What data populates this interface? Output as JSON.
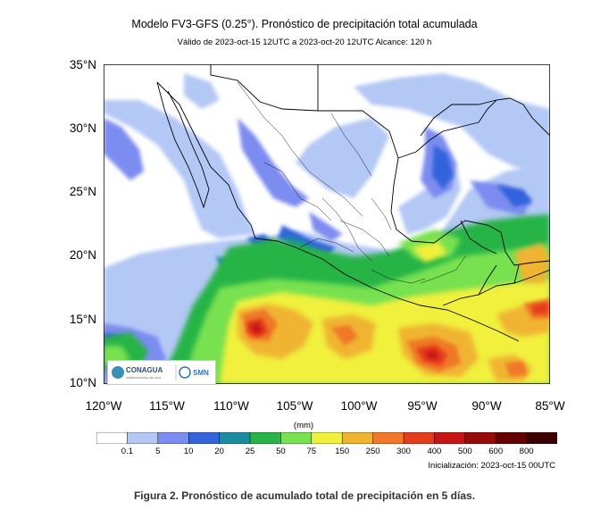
{
  "title": "Modelo FV3-GFS (0.25°). Pronóstico de precipitación total acumulada",
  "subtitle": "Válido de 2023-oct-15 12UTC a 2023-oct-20 12UTC    Alcance: 120 h",
  "lat_labels": [
    "35°N",
    "30°N",
    "25°N",
    "20°N",
    "15°N",
    "10°N"
  ],
  "lon_labels": [
    "120°W",
    "115°W",
    "110°W",
    "105°W",
    "100°W",
    "95°W",
    "90°W",
    "85°W"
  ],
  "colorbar": {
    "units": "(mm)",
    "ticks": [
      "0.1",
      "5",
      "10",
      "20",
      "25",
      "50",
      "75",
      "150",
      "250",
      "300",
      "400",
      "500",
      "600",
      "800"
    ],
    "colors": [
      "#ffffff",
      "#b4c8f5",
      "#7d8cf0",
      "#3264dc",
      "#1e8ca0",
      "#28b446",
      "#78e150",
      "#f0f03c",
      "#f0b432",
      "#f07828",
      "#e63c1e",
      "#c81414",
      "#960a0a",
      "#640000"
    ]
  },
  "initialization": "Inicialización: 2023-oct-15 00UTC",
  "logos": {
    "conagua": "CONAGUA",
    "conagua_sub": "COMISIÓN NACIONAL DEL AGUA",
    "smn": "SMN"
  },
  "caption": "Figura 2. Pronóstico de acumulado total de precipitación en 5 días."
}
